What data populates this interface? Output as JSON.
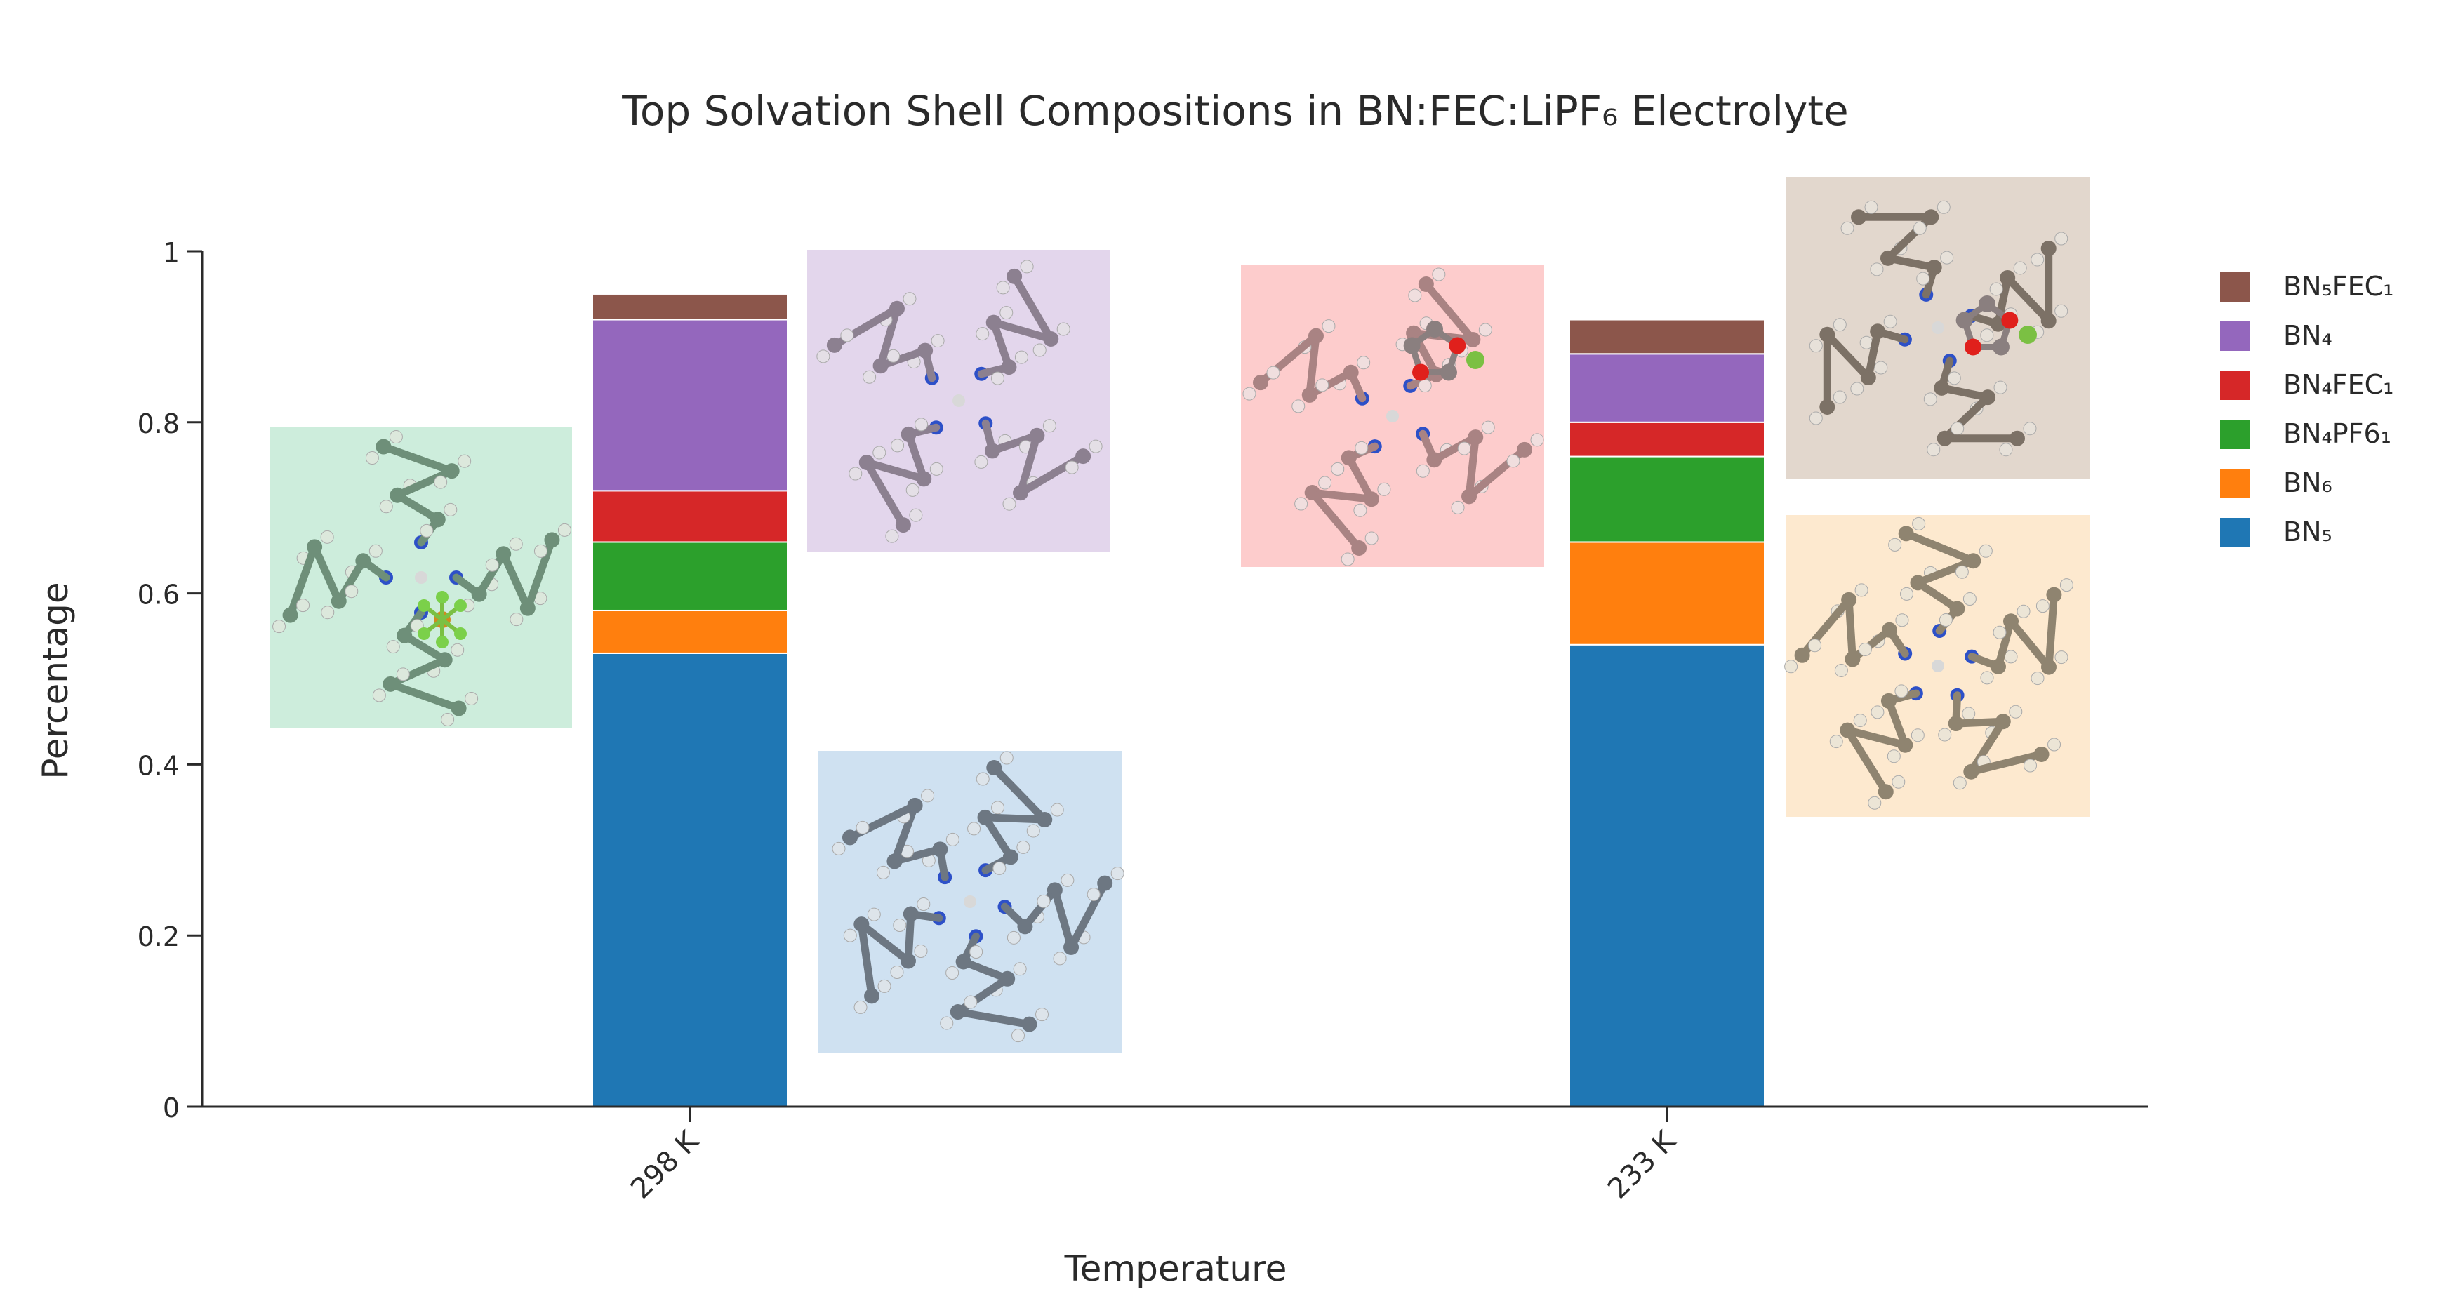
{
  "chart_data": {
    "type": "bar",
    "stacked": true,
    "title": "Top Solvation Shell Compositions in BN:FEC:LiPF₆ Electrolyte",
    "xlabel": "Temperature",
    "ylabel": "Percentage",
    "categories": [
      "298 K",
      "233 K"
    ],
    "ylim": [
      0,
      1
    ],
    "yticks": [
      0,
      0.2,
      0.4,
      0.6,
      0.8,
      1
    ],
    "ytick_labels": [
      "0",
      "0.2",
      "0.4",
      "0.6",
      "0.8",
      "1"
    ],
    "grid": false,
    "legend_position": "right",
    "series": [
      {
        "name": "BN₅",
        "color": "#1f77b4",
        "values": [
          0.53,
          0.54
        ]
      },
      {
        "name": "BN₆",
        "color": "#ff7f0e",
        "values": [
          0.05,
          0.12
        ]
      },
      {
        "name": "BN₄PF6₁",
        "color": "#2ca02c",
        "values": [
          0.08,
          0.1
        ]
      },
      {
        "name": "BN₄FEC₁",
        "color": "#d62728",
        "values": [
          0.06,
          0.04
        ]
      },
      {
        "name": "BN₄",
        "color": "#9467bd",
        "values": [
          0.2,
          0.08
        ]
      },
      {
        "name": "BN₅FEC₁",
        "color": "#8c564b",
        "values": [
          0.03,
          0.04
        ]
      }
    ],
    "legend_order": [
      "BN₅FEC₁",
      "BN₄",
      "BN₄FEC₁",
      "BN₄PF6₁",
      "BN₆",
      "BN₅"
    ],
    "insets": [
      {
        "name": "298K-BN4PF6-structure",
        "bg": "#cdeddc"
      },
      {
        "name": "298K-BN4-structure",
        "bg": "#e3d6ec"
      },
      {
        "name": "298K-BN5-structure",
        "bg": "#cfe1f1"
      },
      {
        "name": "233K-BN4FEC-structure",
        "bg": "#fdcccc"
      },
      {
        "name": "233K-BN5FEC-structure",
        "bg": "#e2d7cd"
      },
      {
        "name": "233K-BN6-structure",
        "bg": "#fde9cf"
      }
    ]
  }
}
